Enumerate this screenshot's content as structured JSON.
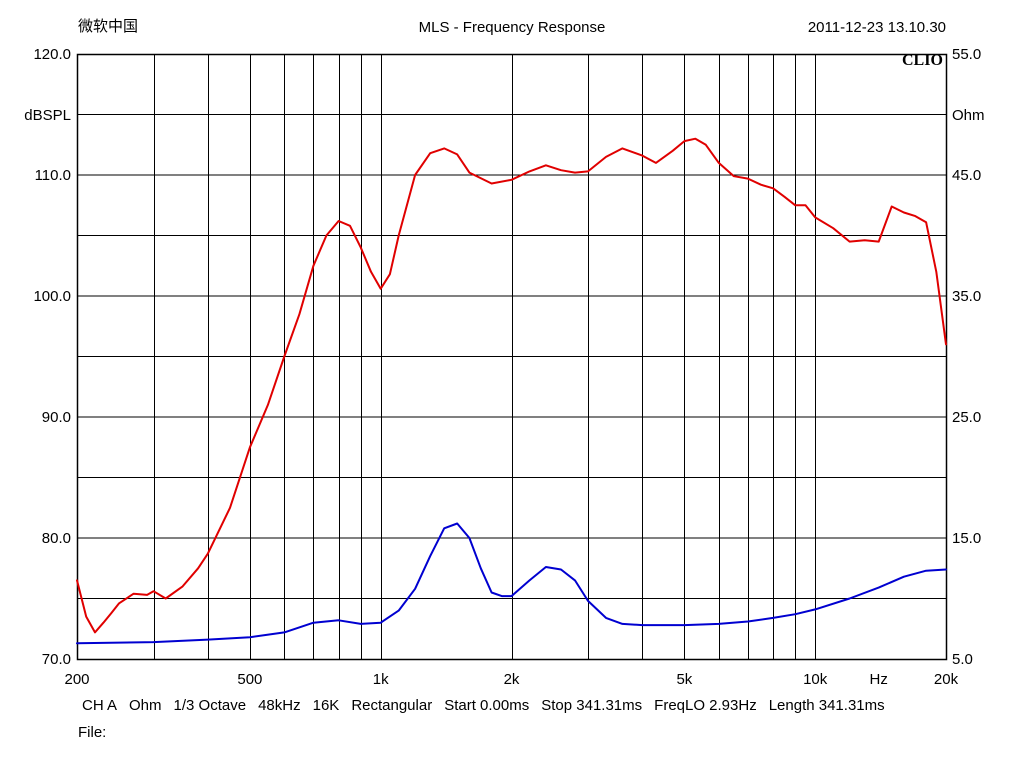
{
  "header": {
    "left": "微软中国",
    "title": "MLS - Frequency Response",
    "timestamp": "2011-12-23 13.10.30"
  },
  "brand": "CLIO",
  "footer": {
    "items": [
      "CH A",
      "Ohm",
      "1/3 Octave",
      "48kHz",
      "16K",
      "Rectangular",
      "Start 0.00ms",
      "Stop 341.31ms",
      "FreqLO 2.93Hz",
      "Length 341.31ms"
    ],
    "file_label": "File:"
  },
  "colors": {
    "spl": "#e00000",
    "impedance": "#0000d0",
    "grid": "#000000"
  },
  "chart_data": {
    "type": "line",
    "title": "MLS - Frequency Response",
    "x_scale": "log",
    "xlim": [
      200,
      20000
    ],
    "x_ticks": [
      {
        "value": 200,
        "label": "200"
      },
      {
        "value": 500,
        "label": "500"
      },
      {
        "value": 1000,
        "label": "1k"
      },
      {
        "value": 2000,
        "label": "2k"
      },
      {
        "value": 5000,
        "label": "5k"
      },
      {
        "value": 10000,
        "label": "10k"
      },
      {
        "value": 20000,
        "label": "20k"
      }
    ],
    "x_unit_label": "Hz",
    "y_left": {
      "label": "dBSPL",
      "lim": [
        70,
        120
      ],
      "ticks": [
        "70.0",
        "80.0",
        "90.0",
        "100.0",
        "110.0",
        "120.0"
      ]
    },
    "y_right": {
      "label": "Ohm",
      "lim": [
        5,
        55
      ],
      "ticks": [
        "5.0",
        "15.0",
        "25.0",
        "35.0",
        "45.0",
        "55.0"
      ]
    },
    "grid": true,
    "series": [
      {
        "axis": "left",
        "color": "#e00000",
        "x": [
          200,
          210,
          220,
          230,
          240,
          250,
          270,
          290,
          300,
          320,
          350,
          380,
          400,
          450,
          500,
          550,
          600,
          650,
          700,
          750,
          800,
          850,
          900,
          950,
          1000,
          1050,
          1100,
          1200,
          1300,
          1400,
          1500,
          1600,
          1800,
          2000,
          2200,
          2400,
          2600,
          2800,
          3000,
          3300,
          3600,
          4000,
          4300,
          4700,
          5000,
          5300,
          5600,
          6000,
          6500,
          7000,
          7500,
          8000,
          8500,
          9000,
          9500,
          10000,
          11000,
          12000,
          13000,
          14000,
          15000,
          16000,
          17000,
          18000,
          19000,
          20000
        ],
        "y": [
          76.5,
          73.5,
          72.2,
          73.0,
          73.8,
          74.6,
          75.4,
          75.3,
          75.6,
          75.0,
          76.0,
          77.5,
          78.7,
          82.5,
          87.5,
          91.0,
          95.0,
          98.5,
          102.5,
          105.0,
          106.2,
          105.8,
          104.0,
          102.0,
          100.6,
          101.8,
          105.0,
          110.0,
          111.8,
          112.2,
          111.7,
          110.2,
          109.3,
          109.6,
          110.3,
          110.8,
          110.4,
          110.2,
          110.3,
          111.5,
          112.2,
          111.6,
          111.0,
          112.0,
          112.8,
          113.0,
          112.5,
          111.0,
          109.9,
          109.7,
          109.2,
          108.9,
          108.2,
          107.5,
          107.5,
          106.5,
          105.6,
          104.5,
          104.6,
          104.5,
          107.4,
          106.9,
          106.6,
          106.1,
          102.0,
          96.0
        ]
      },
      {
        "axis": "right",
        "color": "#0000d0",
        "x": [
          200,
          300,
          400,
          500,
          600,
          700,
          800,
          900,
          1000,
          1100,
          1200,
          1300,
          1400,
          1500,
          1600,
          1700,
          1800,
          1900,
          2000,
          2200,
          2400,
          2600,
          2800,
          3000,
          3300,
          3600,
          4000,
          5000,
          6000,
          7000,
          8000,
          9000,
          10000,
          12000,
          14000,
          16000,
          18000,
          20000
        ],
        "y": [
          6.3,
          6.4,
          6.6,
          6.8,
          7.2,
          8.0,
          8.2,
          7.9,
          8.0,
          9.0,
          10.8,
          13.5,
          15.8,
          16.2,
          15.0,
          12.5,
          10.5,
          10.2,
          10.2,
          11.5,
          12.6,
          12.4,
          11.5,
          9.8,
          8.4,
          7.9,
          7.8,
          7.8,
          7.9,
          8.1,
          8.4,
          8.7,
          9.1,
          10.0,
          10.9,
          11.8,
          12.3,
          12.4
        ]
      }
    ]
  }
}
